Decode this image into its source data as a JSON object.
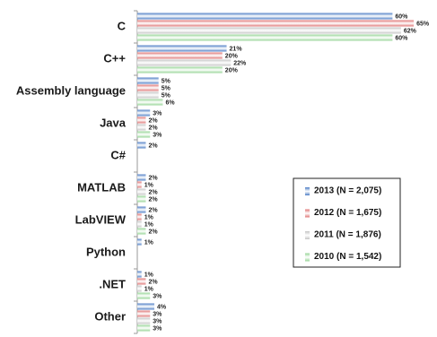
{
  "chart_data": {
    "type": "hbar",
    "categories": [
      "C",
      "C++",
      "Assembly language",
      "Java",
      "C#",
      "MATLAB",
      "LabVIEW",
      "Python",
      ".NET",
      "Other"
    ],
    "series": [
      {
        "name": "2013 (N = 2,075)",
        "color": "#4a7bc4",
        "values": [
          60,
          21,
          5,
          3,
          2,
          2,
          2,
          1,
          1,
          4
        ],
        "value_labels": [
          "60%",
          "21%",
          "5%",
          "3%",
          "2%",
          "2%",
          "2%",
          "1%",
          "1%",
          "4%"
        ]
      },
      {
        "name": "2012 (N = 1,675)",
        "color": "#de7373",
        "values": [
          65,
          20,
          5,
          2,
          null,
          1,
          1,
          null,
          2,
          3
        ],
        "value_labels": [
          "65%",
          "20%",
          "5%",
          "2%",
          null,
          "1%",
          "1%",
          null,
          "2%",
          "3%"
        ]
      },
      {
        "name": "2011 (N = 1,876)",
        "color": "#c4c4c4",
        "values": [
          62,
          22,
          5,
          2,
          null,
          2,
          1,
          null,
          1,
          3
        ],
        "value_labels": [
          "62%",
          "22%",
          "5%",
          "2%",
          null,
          "2%",
          "1%",
          null,
          "1%",
          "3%"
        ]
      },
      {
        "name": "2010 (N = 1,542)",
        "color": "#94d494",
        "values": [
          60,
          20,
          6,
          3,
          null,
          2,
          2,
          null,
          3,
          3
        ],
        "value_labels": [
          "60%",
          "20%",
          "6%",
          "3%",
          null,
          "2%",
          "2%",
          null,
          "3%",
          "3%"
        ]
      }
    ],
    "legend": "lower right"
  }
}
